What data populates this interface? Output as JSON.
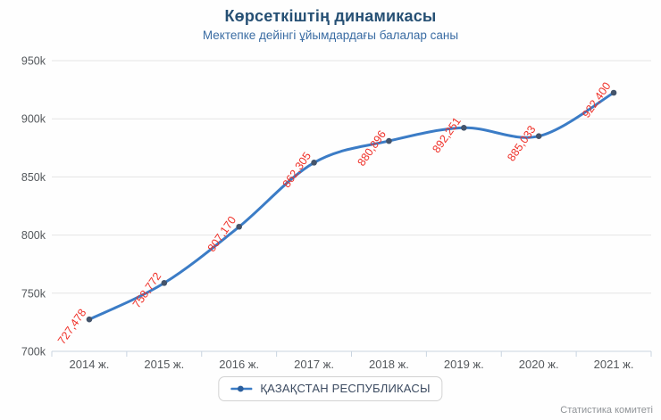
{
  "header": {
    "title": "Көрсеткіштің динамикасы",
    "subtitle": "Мектепке дейінгі ұйымдардағы балалар саны"
  },
  "chart_data": {
    "type": "line",
    "title": "Көрсеткіштің динамикасы",
    "subtitle": "Мектепке дейінгі ұйымдардағы балалар саны",
    "categories": [
      "2014 ж.",
      "2015 ж.",
      "2016 ж.",
      "2017 ж.",
      "2018 ж.",
      "2019 ж.",
      "2020 ж.",
      "2021 ж."
    ],
    "series": [
      {
        "name": "ҚАЗАҚСТАН РЕСПУБЛИКАСЫ",
        "values": [
          727478,
          758772,
          807170,
          862305,
          880896,
          892251,
          885033,
          922400
        ]
      }
    ],
    "data_labels": [
      "727,478",
      "758,772",
      "807,170",
      "862,305",
      "880,896",
      "892,251",
      "885,033",
      "922,400"
    ],
    "xlabel": "",
    "ylabel": "",
    "ylim": [
      700000,
      950000
    ],
    "yticks": [
      700000,
      750000,
      800000,
      850000,
      900000,
      950000
    ],
    "ytick_labels": [
      "700k",
      "750k",
      "800k",
      "850k",
      "900k",
      "950k"
    ],
    "grid": true,
    "legend_position": "bottom",
    "colors": {
      "line": "#3b7cc6",
      "marker": "#44546b",
      "data_label": "#ef3028",
      "grid": "#e4e4e4",
      "axis_line": "#c9d4e0",
      "axis_text": "#54585c",
      "title": "#265074",
      "subtitle": "#3a6ca3",
      "legend_text": "#3c4b61"
    }
  },
  "legend": {
    "label": "ҚАЗАҚСТАН РЕСПУБЛИКАСЫ"
  },
  "credits": {
    "text": "Статистика комитеті"
  }
}
